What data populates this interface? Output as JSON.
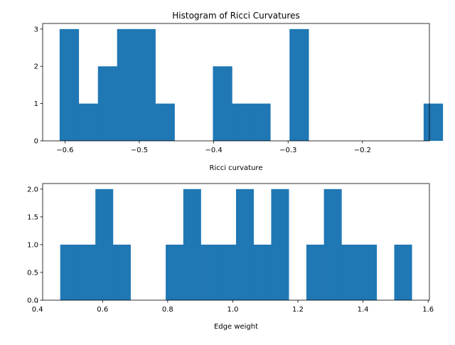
{
  "chart_data": [
    {
      "type": "histogram",
      "title": "Histogram of Ricci Curvatures",
      "xlabel": "Ricci curvature",
      "ylabel": "",
      "color": "#1f77b4",
      "xlim": [
        -0.63,
        -0.11
      ],
      "ylim": [
        0,
        3.15
      ],
      "bin_start": -0.6072,
      "bin_width": 0.02576,
      "counts": [
        3,
        1,
        2,
        3,
        3,
        1,
        0,
        0,
        2,
        1,
        1,
        0,
        3,
        0,
        0,
        0,
        0,
        0,
        0,
        1
      ],
      "xticks": [
        -0.6,
        -0.5,
        -0.4,
        -0.3,
        -0.2
      ],
      "xtick_labels": [
        "−0.6",
        "−0.5",
        "−0.4",
        "−0.3",
        "−0.2"
      ],
      "yticks": [
        0,
        1,
        2,
        3
      ],
      "ytick_labels": [
        "0",
        "1",
        "2",
        "3"
      ]
    },
    {
      "type": "histogram",
      "title": "",
      "xlabel": "Edge weight",
      "ylabel": "",
      "color": "#1f77b4",
      "xlim": [
        0.416,
        1.604
      ],
      "ylim": [
        0,
        2.1
      ],
      "bin_start": 0.47,
      "bin_width": 0.054,
      "counts": [
        1,
        1,
        2,
        1,
        0,
        0,
        1,
        2,
        1,
        1,
        2,
        1,
        2,
        0,
        1,
        2,
        1,
        1,
        0,
        1
      ],
      "xticks": [
        0.4,
        0.6,
        0.8,
        1.0,
        1.2,
        1.4,
        1.6
      ],
      "xtick_labels": [
        "0.4",
        "0.6",
        "0.8",
        "1.0",
        "1.2",
        "1.4",
        "1.6"
      ],
      "yticks": [
        0,
        0.5,
        1.0,
        1.5,
        2.0
      ],
      "ytick_labels": [
        "0.0",
        "0.5",
        "1.0",
        "1.5",
        "2.0"
      ]
    }
  ]
}
